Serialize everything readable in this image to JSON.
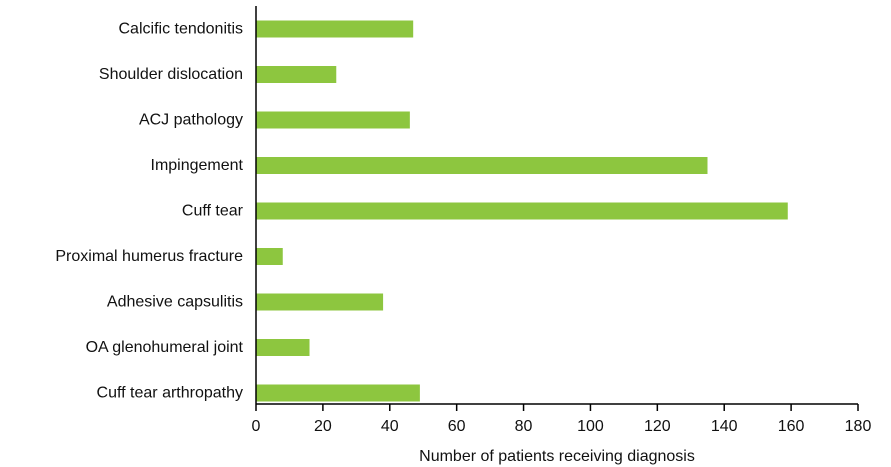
{
  "chart_data": {
    "type": "bar",
    "orientation": "horizontal",
    "categories": [
      "Calcific tendonitis",
      "Shoulder dislocation",
      "ACJ pathology",
      "Impingement",
      "Cuff tear",
      "Proximal humerus fracture",
      "Adhesive capsulitis",
      "OA glenohumeral joint",
      "Cuff tear arthropathy"
    ],
    "values": [
      47,
      24,
      46,
      135,
      159,
      8,
      38,
      16,
      49
    ],
    "title": "",
    "xlabel": "Number of patients receiving diagnosis",
    "ylabel": "",
    "xlim": [
      0,
      180
    ],
    "xticks": [
      "0",
      "20",
      "40",
      "60",
      "80",
      "100",
      "120",
      "140",
      "160",
      "180"
    ],
    "grid": false,
    "legend": "none",
    "bar_color": "#8dc63f"
  }
}
